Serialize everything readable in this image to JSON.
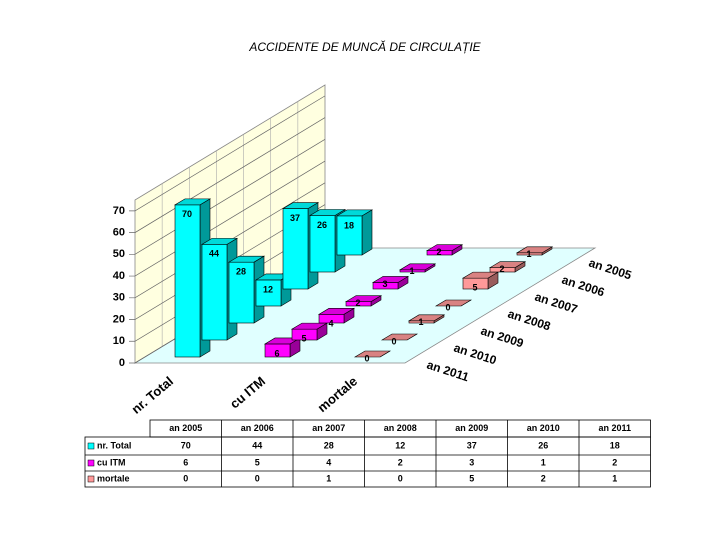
{
  "chart_data": {
    "type": "bar3d",
    "title": "ACCIDENTE DE MUNCĂ DE CIRCULAȚIE",
    "categories": [
      "an 2005",
      "an 2006",
      "an 2007",
      "an 2008",
      "an 2009",
      "an 2010",
      "an 2011"
    ],
    "series": [
      {
        "name": "nr. Total",
        "color": "#00ffff",
        "values": [
          70,
          44,
          28,
          12,
          37,
          26,
          18
        ]
      },
      {
        "name": "cu ITM",
        "color": "#ff00ff",
        "values": [
          6,
          5,
          4,
          2,
          3,
          1,
          2
        ]
      },
      {
        "name": "mortale",
        "color": "#ff9999",
        "values": [
          0,
          0,
          1,
          0,
          5,
          2,
          1
        ]
      }
    ],
    "ylim": [
      0,
      75
    ],
    "yticks": [
      0,
      10,
      20,
      30,
      40,
      50,
      60,
      70
    ],
    "grid": true
  }
}
